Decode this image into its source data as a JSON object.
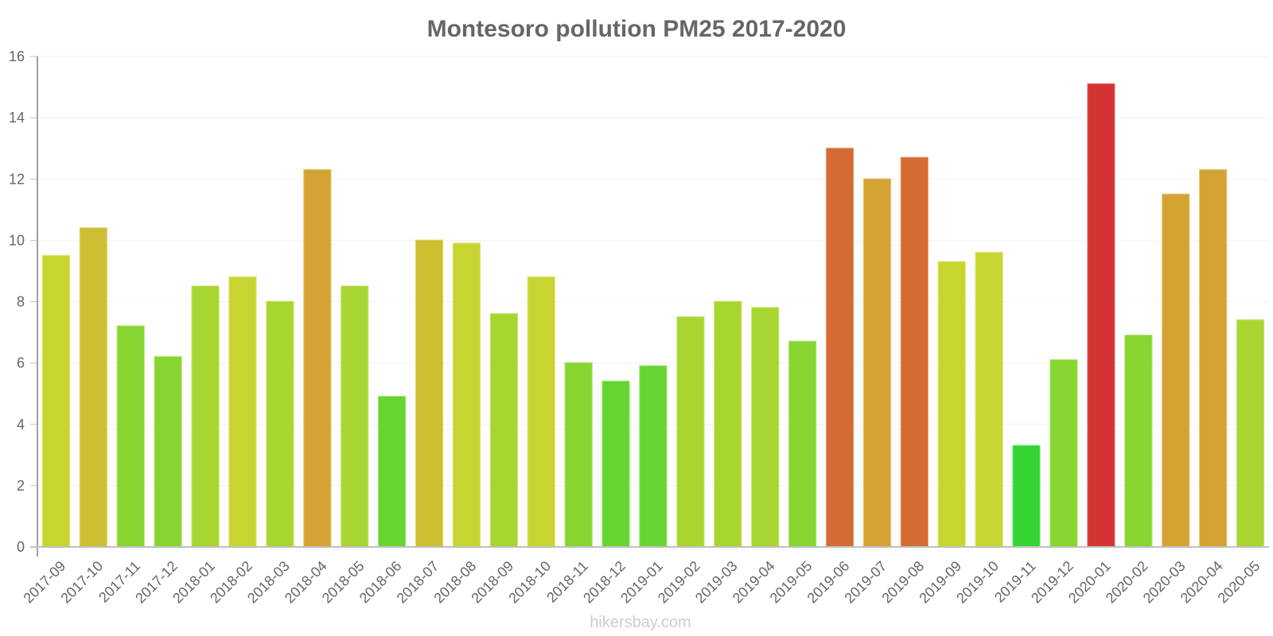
{
  "chart_data": {
    "type": "bar",
    "title": "Montesoro pollution PM25 2017-2020",
    "xlabel": "",
    "ylabel": "",
    "ylim": [
      0,
      16
    ],
    "yticks": [
      0,
      2,
      4,
      6,
      8,
      10,
      12,
      14,
      16
    ],
    "grid": true,
    "legend": null,
    "categories": [
      "2017-09",
      "2017-10",
      "2017-11",
      "2017-12",
      "2018-01",
      "2018-02",
      "2018-03",
      "2018-04",
      "2018-05",
      "2018-06",
      "2018-07",
      "2018-08",
      "2018-09",
      "2018-10",
      "2018-11",
      "2018-12",
      "2019-01",
      "2019-02",
      "2019-03",
      "2019-04",
      "2019-05",
      "2019-06",
      "2019-07",
      "2019-08",
      "2019-09",
      "2019-10",
      "2019-11",
      "2019-12",
      "2020-01",
      "2020-02",
      "2020-03",
      "2020-04",
      "2020-05"
    ],
    "values": [
      9.5,
      10.4,
      7.2,
      6.2,
      8.5,
      8.8,
      8.0,
      12.3,
      8.5,
      4.9,
      10.0,
      9.9,
      7.6,
      8.8,
      6.0,
      5.4,
      5.9,
      7.5,
      8.0,
      7.8,
      6.7,
      13.0,
      12.0,
      12.7,
      9.3,
      9.6,
      3.3,
      6.1,
      15.1,
      6.9,
      11.5,
      12.3,
      7.4
    ],
    "colors": [
      "#CEDC33",
      "#D4C434",
      "#8ADC33",
      "#8ADC33",
      "#AEDC33",
      "#CEDC33",
      "#AEDC33",
      "#DBA835",
      "#AEDC33",
      "#6ADC33",
      "#D4C434",
      "#CEDC33",
      "#AEDC33",
      "#CEDC33",
      "#8ADC33",
      "#6ADC33",
      "#6ADC33",
      "#AEDC33",
      "#AEDC33",
      "#AEDC33",
      "#8ADC33",
      "#DC6E34",
      "#DBA835",
      "#DC6E34",
      "#CEDC33",
      "#CEDC33",
      "#35DC33",
      "#8ADC33",
      "#DB3535",
      "#8ADC33",
      "#DBA835",
      "#DBA835",
      "#AEDC33"
    ]
  },
  "watermark": "hikersbay.com"
}
